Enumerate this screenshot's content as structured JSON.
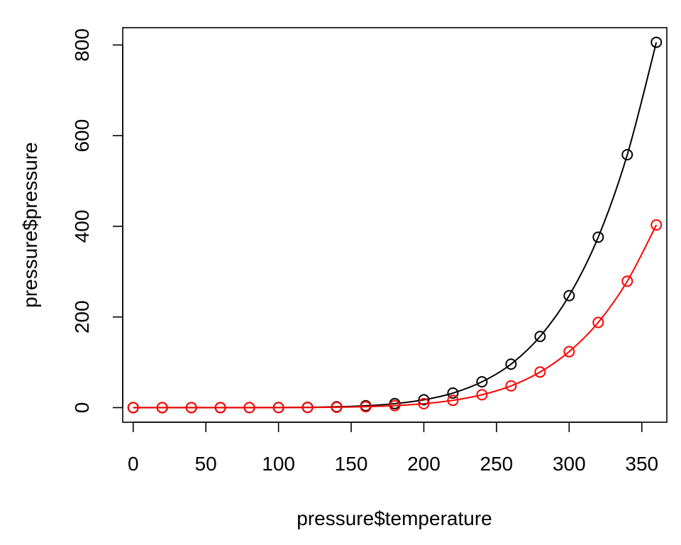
{
  "chart_data": {
    "type": "line",
    "xlabel": "pressure$temperature",
    "ylabel": "pressure$pressure",
    "xlim": [
      -7.2,
      367.2
    ],
    "ylim": [
      -32.2,
      838.2
    ],
    "x_ticks": [
      0,
      50,
      100,
      150,
      200,
      250,
      300,
      350
    ],
    "y_ticks": [
      0,
      200,
      400,
      600,
      800
    ],
    "grid": false,
    "x": [
      0,
      20,
      40,
      60,
      80,
      100,
      120,
      140,
      160,
      180,
      200,
      220,
      240,
      260,
      280,
      300,
      320,
      340,
      360
    ],
    "series": [
      {
        "color": "#000000",
        "marker": "open-circle",
        "values": [
          0.0002,
          0.0012,
          0.006,
          0.03,
          0.09,
          0.27,
          0.75,
          1.85,
          4.2,
          8.8,
          17.3,
          32.1,
          57.0,
          96.0,
          157.0,
          247.0,
          376.0,
          558.0,
          806.0
        ]
      },
      {
        "color": "#ff0000",
        "marker": "open-circle",
        "values": [
          0.0001,
          0.0006,
          0.003,
          0.015,
          0.045,
          0.135,
          0.375,
          0.925,
          2.1,
          4.4,
          8.65,
          16.05,
          28.5,
          48.0,
          78.5,
          123.5,
          188.0,
          279.0,
          403.0
        ]
      }
    ]
  }
}
